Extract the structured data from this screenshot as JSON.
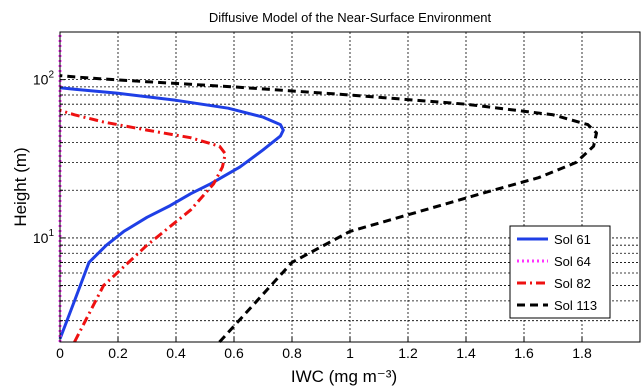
{
  "chart_data": {
    "type": "line",
    "title": "Diffusive Model of the Near-Surface Environment",
    "xlabel": "IWC (mg m⁻³)",
    "ylabel": "Height (m)",
    "xlim": [
      0,
      2
    ],
    "ylim": [
      2.2,
      200
    ],
    "yscale": "log",
    "grid": true,
    "legend_position": "lower-right",
    "x_ticks": [
      0,
      0.2,
      0.4,
      0.6,
      0.8,
      1,
      1.2,
      1.4,
      1.6,
      1.8
    ],
    "x_tick_labels": [
      "0",
      "0.2",
      "0.4",
      "0.6",
      "0.8",
      "1",
      "1.2",
      "1.4",
      "1.6",
      "1.8"
    ],
    "y_ticks": [
      10,
      100
    ],
    "y_tick_labels": [
      {
        "base": "10",
        "exp": "1"
      },
      {
        "base": "10",
        "exp": "2"
      }
    ],
    "series": [
      {
        "name": "Sol 61",
        "color": "#1f3fe6",
        "dash": "solid",
        "x": [
          0,
          0.05,
          0.1,
          0.16,
          0.22,
          0.3,
          0.38,
          0.45,
          0.52,
          0.62,
          0.7,
          0.76,
          0.77,
          0.76,
          0.7,
          0.58,
          0.4,
          0.2,
          0.05,
          0
        ],
        "y": [
          2.3,
          4,
          7,
          9,
          11,
          13.5,
          16,
          19,
          22,
          28,
          36,
          44,
          48,
          52,
          58,
          66,
          74,
          82,
          87,
          89
        ]
      },
      {
        "name": "Sol 64",
        "color": "#ff33ff",
        "dash": "dotted",
        "x": [
          0,
          0
        ],
        "y": [
          2.2,
          200
        ]
      },
      {
        "name": "Sol 82",
        "color": "#ee1111",
        "dash": "dashdot",
        "x": [
          0.05,
          0.15,
          0.3,
          0.45,
          0.53,
          0.56,
          0.57,
          0.55,
          0.45,
          0.3,
          0.15,
          0.05,
          0
        ],
        "y": [
          2.2,
          5,
          9,
          15,
          22,
          28,
          34,
          38,
          43,
          48,
          54,
          60,
          64
        ]
      },
      {
        "name": "Sol 113",
        "color": "#000000",
        "dash": "dashed",
        "x": [
          0.55,
          0.8,
          1.0,
          1.2,
          1.45,
          1.65,
          1.78,
          1.84,
          1.85,
          1.82,
          1.7,
          1.4,
          1.0,
          0.6,
          0.3,
          0.15,
          0.05,
          0
        ],
        "y": [
          2.2,
          7,
          11,
          14,
          19,
          24,
          30,
          38,
          46,
          52,
          60,
          70,
          80,
          90,
          97,
          101,
          104,
          106
        ]
      }
    ]
  }
}
